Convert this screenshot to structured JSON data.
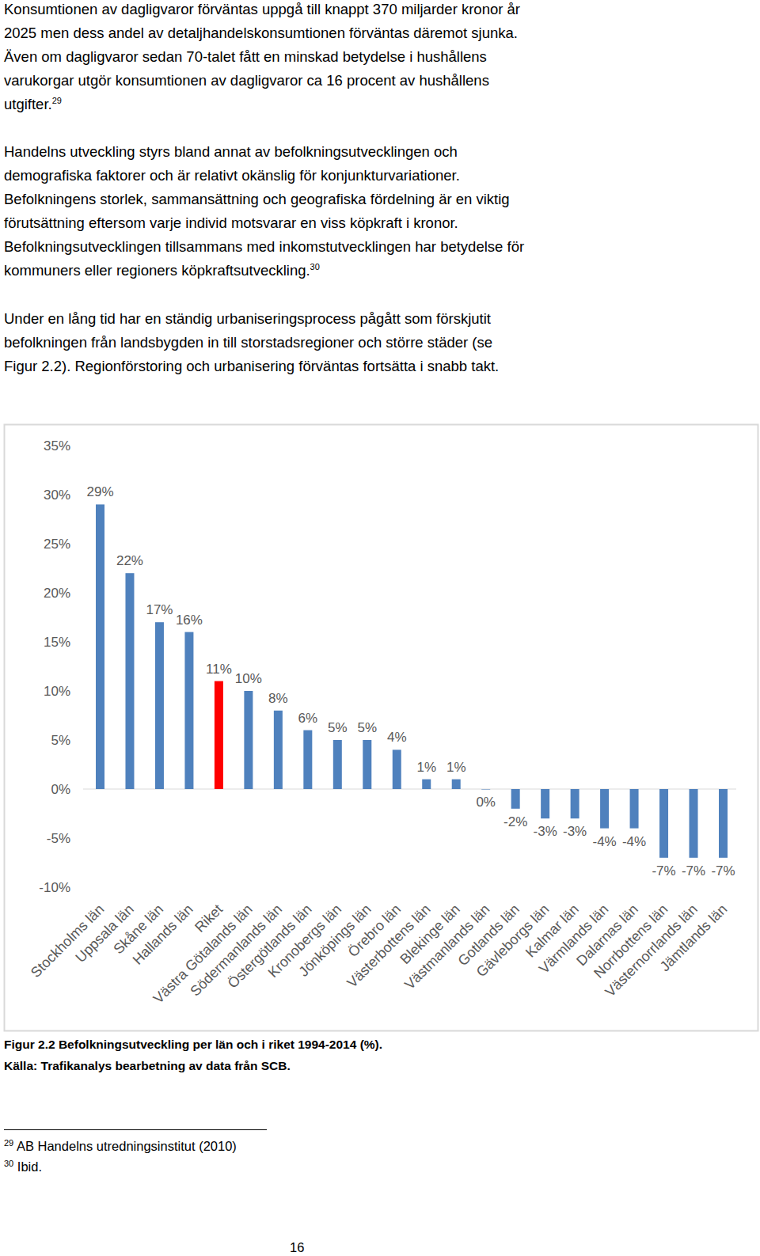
{
  "paragraphs": [
    {
      "lines": [
        "Konsumtionen av dagligvaror förväntas uppgå till knappt 370 miljarder kronor år",
        "2025 men dess andel av detaljhandelskonsumtionen förväntas däremot sjunka.",
        "Även om dagligvaror sedan 70-talet fått en minskad betydelse i hushållens",
        "varukorgar utgör konsumtionen av dagligvaror ca 16 procent av hushållens",
        "utgifter."
      ],
      "ref": "29"
    },
    {
      "lines": [
        "Handelns utveckling styrs bland annat av befolkningsutvecklingen och",
        "demografiska faktorer och är relativt okänslig för konjunkturvariationer.",
        "Befolkningens storlek, sammansättning och geografiska fördelning är en viktig",
        "förutsättning eftersom varje individ motsvarar en viss köpkraft i kronor.",
        "Befolkningsutvecklingen tillsammans med inkomstutvecklingen har betydelse för",
        "kommuners eller regioners köpkraftsutveckling."
      ],
      "ref": "30"
    },
    {
      "lines": [
        "Under en lång tid har en ständig urbaniseringsprocess pågått som förskjutit",
        "befolkningen från landsbygden in till storstadsregioner och större städer (se",
        "Figur 2.2). Regionförstoring och urbanisering förväntas fortsätta i snabb takt."
      ]
    }
  ],
  "chart_data": {
    "type": "bar",
    "categories": [
      "Stockholms län",
      "Uppsala län",
      "Skåne län",
      "Hallands län",
      "Riket",
      "Västra Götalands län",
      "Södermanlands län",
      "Östergötlands län",
      "Kronobergs län",
      "Jönköpings län",
      "Örebro län",
      "Västerbottens län",
      "Blekinge län",
      "Västmanlands län",
      "Gotlands län",
      "Gävleborgs län",
      "Kalmar län",
      "Värmlands län",
      "Dalarnas län",
      "Norrbottens län",
      "Västernorrlands län",
      "Jämtlands län"
    ],
    "values": [
      29,
      22,
      17,
      16,
      11,
      10,
      8,
      6,
      5,
      5,
      4,
      1,
      1,
      0,
      -2,
      -3,
      -3,
      -4,
      -4,
      -7,
      -7,
      -7
    ],
    "value_labels": [
      "29%",
      "22%",
      "17%",
      "16%",
      "11%",
      "10%",
      "8%",
      "6%",
      "5%",
      "5%",
      "4%",
      "1%",
      "1%",
      "0%",
      "-2%",
      "-3%",
      "-3%",
      "-4%",
      "-4%",
      "-7%",
      "-7%",
      "-7%"
    ],
    "colors": [
      "#4f81bd",
      "#4f81bd",
      "#4f81bd",
      "#4f81bd",
      "#ff0000",
      "#4f81bd",
      "#4f81bd",
      "#4f81bd",
      "#4f81bd",
      "#4f81bd",
      "#4f81bd",
      "#4f81bd",
      "#4f81bd",
      "#4f81bd",
      "#4f81bd",
      "#4f81bd",
      "#4f81bd",
      "#4f81bd",
      "#4f81bd",
      "#4f81bd",
      "#4f81bd",
      "#4f81bd"
    ],
    "ylim": [
      -10,
      35
    ],
    "yticks": [
      {
        "value": -10,
        "label": "-10%"
      },
      {
        "value": -5,
        "label": "-5%"
      },
      {
        "value": 0,
        "label": "0%"
      },
      {
        "value": 5,
        "label": "5%"
      },
      {
        "value": 10,
        "label": "10%"
      },
      {
        "value": 15,
        "label": "15%"
      },
      {
        "value": 20,
        "label": "20%"
      },
      {
        "value": 25,
        "label": "25%"
      },
      {
        "value": 30,
        "label": "30%"
      },
      {
        "value": 35,
        "label": "35%"
      }
    ],
    "grid": false,
    "data_labels": true
  },
  "caption": [
    "Figur 2.2 Befolkningsutveckling per län och i riket 1994-2014 (%).",
    "Källa: Trafikanalys bearbetning av data från SCB."
  ],
  "footnotes": [
    {
      "number": "29",
      "text": "AB Handelns utredningsinstitut (2010)"
    },
    {
      "number": "30",
      "text": "Ibid."
    }
  ],
  "page_number": "16"
}
